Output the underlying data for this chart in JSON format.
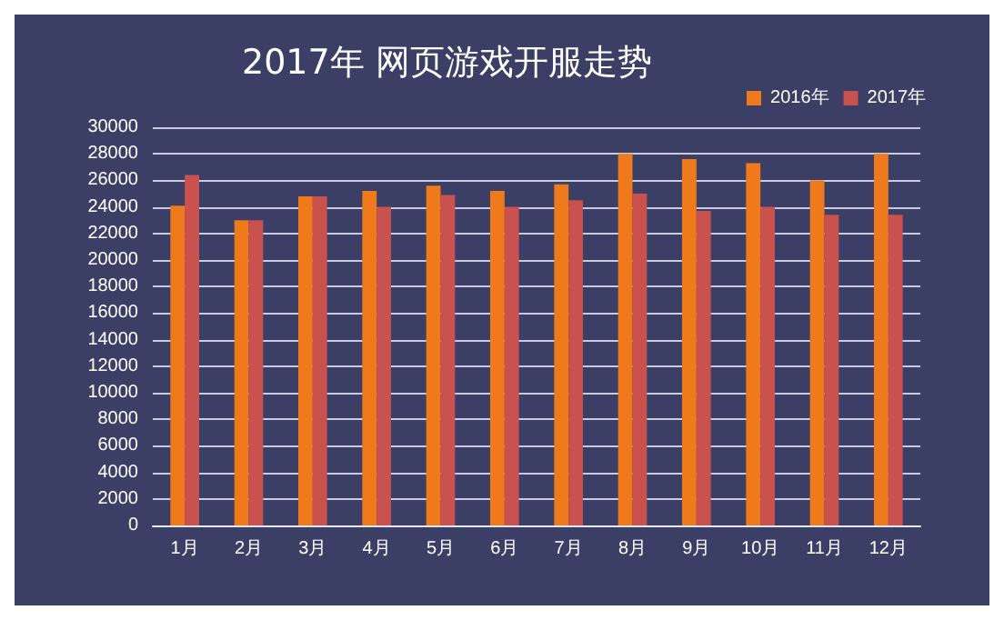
{
  "chart_data": {
    "type": "bar",
    "title": "2017年 网页游戏开服走势",
    "categories": [
      "1月",
      "2月",
      "3月",
      "4月",
      "5月",
      "6月",
      "7月",
      "8月",
      "9月",
      "10月",
      "11月",
      "12月"
    ],
    "series": [
      {
        "name": "2016年",
        "color": "#ef7a1c",
        "values": [
          24100,
          23000,
          24800,
          25200,
          25600,
          25200,
          25700,
          28000,
          27600,
          27300,
          26000,
          28000
        ]
      },
      {
        "name": "2017年",
        "color": "#c9524e",
        "values": [
          26400,
          23000,
          24800,
          24000,
          24900,
          24000,
          24500,
          25000,
          23700,
          24000,
          23400,
          23400
        ]
      }
    ],
    "ylim": [
      0,
      30000
    ],
    "yticks": [
      0,
      2000,
      4000,
      6000,
      8000,
      10000,
      12000,
      14000,
      16000,
      18000,
      20000,
      22000,
      24000,
      26000,
      28000,
      30000
    ],
    "grid": "y",
    "legend": "top right"
  }
}
